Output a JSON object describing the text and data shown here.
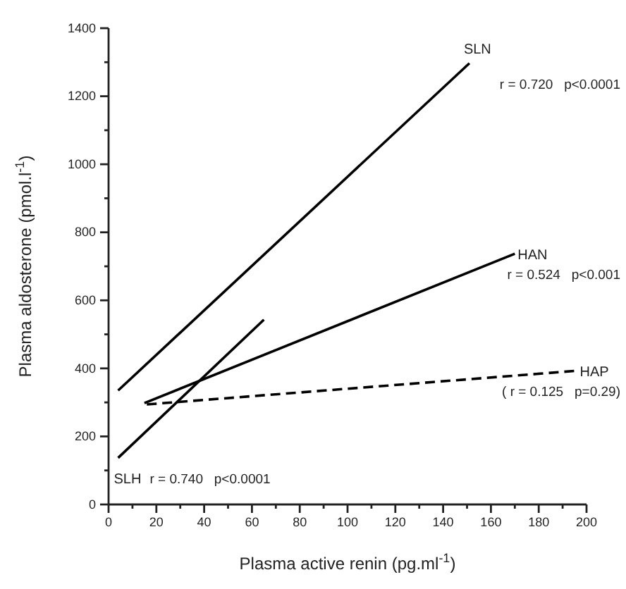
{
  "chart_data": {
    "type": "line",
    "xlabel": "Plasma active renin (pg.ml$^{-1}$)",
    "ylabel": "Plasma aldosterone (pmol.l$^{-1}$)",
    "xlim": [
      0,
      200
    ],
    "ylim": [
      0,
      1400
    ],
    "xticks": [
      0,
      {
        "value": 10,
        "label": null
      },
      20,
      {
        "value": 30,
        "label": null
      },
      40,
      {
        "value": 50,
        "label": null
      },
      60,
      {
        "value": 70,
        "label": null
      },
      80,
      {
        "value": 90,
        "label": null
      },
      100,
      {
        "value": 110,
        "label": null
      },
      120,
      {
        "value": 130,
        "label": null
      },
      140,
      {
        "value": 150,
        "label": null
      },
      160,
      {
        "value": 170,
        "label": null
      },
      180,
      {
        "value": 190,
        "label": null
      },
      200
    ],
    "yticks": [
      0,
      {
        "value": 100,
        "label": null
      },
      200,
      {
        "value": 300,
        "label": null
      },
      400,
      {
        "value": 500,
        "label": null
      },
      600,
      {
        "value": 700,
        "label": null
      },
      800,
      {
        "value": 900,
        "label": null
      },
      1000,
      {
        "value": 1100,
        "label": null
      },
      1200,
      {
        "value": 1300,
        "label": null
      },
      1400
    ],
    "grid": false,
    "legend": false,
    "marker": "none",
    "series": [
      {
        "name": "SLN",
        "color": "#000000",
        "x": [
          4,
          151
        ],
        "values": [
          335,
          1297
        ]
      },
      {
        "name": "HAN",
        "color": "#000000",
        "x": [
          15,
          170
        ],
        "values": [
          298,
          737
        ]
      },
      {
        "name": "HAP",
        "color": "#000000",
        "x": [
          16,
          196
        ],
        "values": [
          294,
          393
        ],
        "line_style": "dashed"
      },
      {
        "name": "SLH",
        "color": "#000000",
        "x": [
          4,
          65
        ],
        "values": [
          137,
          543
        ]
      }
    ],
    "annotations": [
      "r = 0.720   p<0.0001",
      "r = 0.524   p<0.001",
      "( r = 0.125   p=0.29)",
      "r = 0.740   p<0.0001"
    ]
  }
}
